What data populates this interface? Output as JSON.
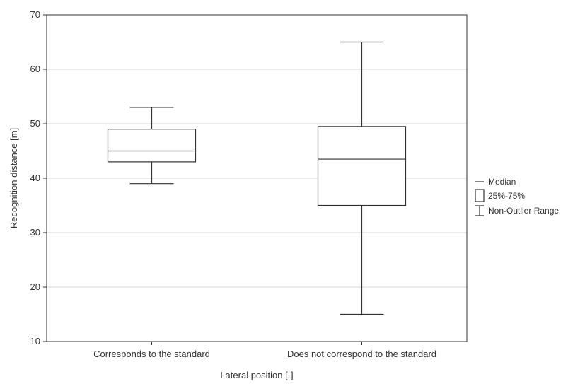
{
  "chart_data": {
    "type": "boxplot",
    "title": "",
    "xlabel": "Lateral position [-]",
    "ylabel": "Recognition distance [m]",
    "ylim": [
      10,
      70
    ],
    "yticks": [
      10,
      20,
      30,
      40,
      50,
      60,
      70
    ],
    "grid": true,
    "legend_position": "right",
    "categories": [
      "Corresponds to the standard",
      "Does not correspond to the standard"
    ],
    "boxes": [
      {
        "category": "Corresponds to the standard",
        "min": 39,
        "q1": 43,
        "median": 45,
        "q3": 49,
        "max": 53
      },
      {
        "category": "Does not correspond to the standard",
        "min": 15,
        "q1": 35,
        "median": 43.5,
        "q3": 49.5,
        "max": 65
      }
    ],
    "legend": [
      {
        "key": "median",
        "label": "Median"
      },
      {
        "key": "iqr",
        "label": "25%-75%"
      },
      {
        "key": "range",
        "label": "Non-Outlier Range"
      }
    ]
  }
}
